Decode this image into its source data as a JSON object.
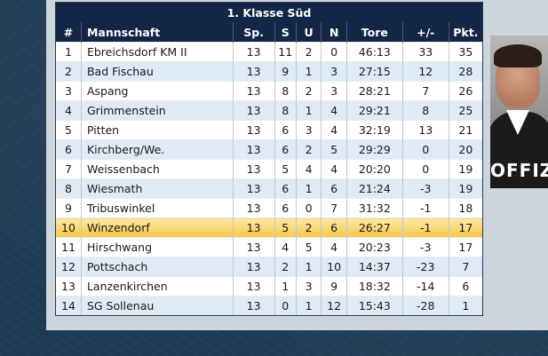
{
  "table": {
    "title": "1. Klasse Süd",
    "headers": [
      "#",
      "Mannschaft",
      "Sp.",
      "S",
      "U",
      "N",
      "Tore",
      "+/-",
      "Pkt."
    ],
    "rows": [
      [
        "1",
        "Ebreichsdorf KM II",
        "13",
        "11",
        "2",
        "0",
        "46:13",
        "33",
        "35"
      ],
      [
        "2",
        "Bad Fischau",
        "13",
        "9",
        "1",
        "3",
        "27:15",
        "12",
        "28"
      ],
      [
        "3",
        "Aspang",
        "13",
        "8",
        "2",
        "3",
        "28:21",
        "7",
        "26"
      ],
      [
        "4",
        "Grimmenstein",
        "13",
        "8",
        "1",
        "4",
        "29:21",
        "8",
        "25"
      ],
      [
        "5",
        "Pitten",
        "13",
        "6",
        "3",
        "4",
        "32:19",
        "13",
        "21"
      ],
      [
        "6",
        "Kirchberg/We.",
        "13",
        "6",
        "2",
        "5",
        "29:29",
        "0",
        "20"
      ],
      [
        "7",
        "Weissenbach",
        "13",
        "5",
        "4",
        "4",
        "20:20",
        "0",
        "19"
      ],
      [
        "8",
        "Wiesmath",
        "13",
        "6",
        "1",
        "6",
        "21:24",
        "-3",
        "19"
      ],
      [
        "9",
        "Tribuswinkel",
        "13",
        "6",
        "0",
        "7",
        "31:32",
        "-1",
        "18"
      ],
      [
        "10",
        "Winzendorf",
        "13",
        "5",
        "2",
        "6",
        "26:27",
        "-1",
        "17"
      ],
      [
        "11",
        "Hirschwang",
        "13",
        "4",
        "5",
        "4",
        "20:23",
        "-3",
        "17"
      ],
      [
        "12",
        "Pottschach",
        "13",
        "2",
        "1",
        "10",
        "14:37",
        "-23",
        "7"
      ],
      [
        "13",
        "Lanzenkirchen",
        "13",
        "1",
        "3",
        "9",
        "18:32",
        "-14",
        "6"
      ],
      [
        "14",
        "SG Sollenau",
        "13",
        "0",
        "1",
        "12",
        "15:43",
        "-28",
        "1"
      ]
    ],
    "highlighted_row": 9
  },
  "ad": {
    "text": "OFFIZ"
  }
}
